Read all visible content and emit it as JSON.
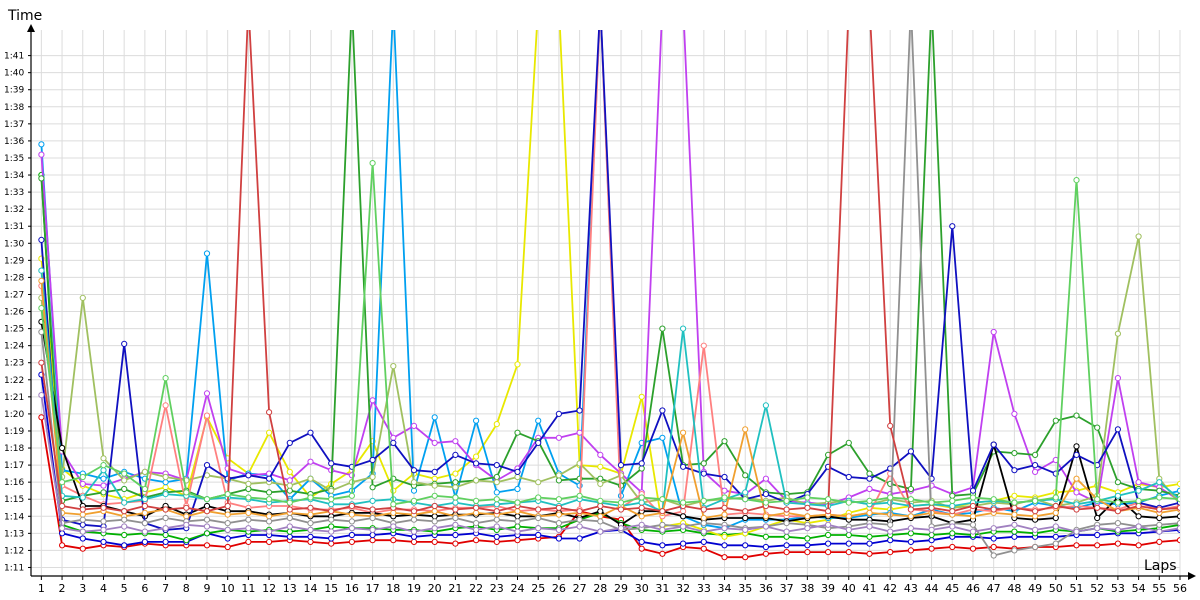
{
  "chart_data": {
    "type": "line",
    "xlabel": "Laps",
    "ylabel": "Time",
    "grid": true,
    "legend": "none",
    "xlim": [
      0.5,
      56
    ],
    "ylim": [
      10.5,
      42.5
    ],
    "x": [
      1,
      2,
      3,
      4,
      5,
      6,
      7,
      8,
      9,
      10,
      11,
      12,
      13,
      14,
      15,
      16,
      17,
      18,
      19,
      20,
      21,
      22,
      23,
      24,
      25,
      26,
      27,
      28,
      29,
      30,
      31,
      32,
      33,
      34,
      35,
      36,
      37,
      38,
      39,
      40,
      41,
      42,
      43,
      44,
      45,
      46,
      47,
      48,
      49,
      50,
      51,
      52,
      53,
      54,
      55,
      56
    ],
    "x_tick_labels": [
      "1",
      "2",
      "3",
      "4",
      "5",
      "6",
      "7",
      "8",
      "9",
      "10",
      "11",
      "12",
      "13",
      "14",
      "15",
      "16",
      "17",
      "18",
      "19",
      "20",
      "21",
      "22",
      "23",
      "24",
      "25",
      "26",
      "27",
      "28",
      "29",
      "30",
      "31",
      "32",
      "33",
      "34",
      "35",
      "36",
      "37",
      "38",
      "39",
      "40",
      "41",
      "42",
      "43",
      "44",
      "45",
      "46",
      "47",
      "48",
      "49",
      "50",
      "51",
      "52",
      "53",
      "54",
      "55",
      "56"
    ],
    "y_ticks": [
      11,
      12,
      13,
      14,
      15,
      16,
      17,
      18,
      19,
      20,
      21,
      22,
      23,
      24,
      25,
      26,
      27,
      28,
      29,
      30,
      31,
      32,
      33,
      34,
      35,
      36,
      37,
      38,
      39,
      40,
      41
    ],
    "y_tick_labels": [
      "1:11",
      "1:12",
      "1:13",
      "1:14",
      "1:15",
      "1:16",
      "1:17",
      "1:18",
      "1:19",
      "1:20",
      "1:21",
      "1:22",
      "1:23",
      "1:24",
      "1:25",
      "1:26",
      "1:27",
      "1:28",
      "1:29",
      "1:30",
      "1:31",
      "1:32",
      "1:33",
      "1:34",
      "1:35",
      "1:36",
      "1:37",
      "1:38",
      "1:39",
      "1:40",
      "1:41"
    ],
    "series": [
      {
        "color": "#e00000",
        "values": [
          19.8,
          12.3,
          12.1,
          12.3,
          12.2,
          12.4,
          12.3,
          12.3,
          12.3,
          12.2,
          12.5,
          12.5,
          12.6,
          12.5,
          12.4,
          12.5,
          12.6,
          12.6,
          12.5,
          12.5,
          12.4,
          12.6,
          12.5,
          12.6,
          12.7,
          12.8,
          14.3,
          14.0,
          13.8,
          12.1,
          11.8,
          12.2,
          12.1,
          11.6,
          11.6,
          11.8,
          11.9,
          11.9,
          11.9,
          11.9,
          11.8,
          11.9,
          12.0,
          12.1,
          12.2,
          12.1,
          12.2,
          12.1,
          12.2,
          12.2,
          12.3,
          12.3,
          12.4,
          12.3,
          12.5,
          12.6
        ]
      },
      {
        "color": "#0000d0",
        "values": [
          22.3,
          13.0,
          12.7,
          12.5,
          12.3,
          12.5,
          12.5,
          12.5,
          13.0,
          12.7,
          12.9,
          12.9,
          12.8,
          12.8,
          12.7,
          12.9,
          12.9,
          13.0,
          12.8,
          12.9,
          12.9,
          13.0,
          12.8,
          12.9,
          12.9,
          12.7,
          12.7,
          13.1,
          13.2,
          12.5,
          12.3,
          12.4,
          12.5,
          12.3,
          12.3,
          12.2,
          12.3,
          12.3,
          12.4,
          12.4,
          12.4,
          12.6,
          12.5,
          12.6,
          12.8,
          12.8,
          12.7,
          12.8,
          12.8,
          12.8,
          12.9,
          12.9,
          13.0,
          13.0,
          13.1,
          13.2
        ]
      },
      {
        "color": "#00b000",
        "values": [
          34.0,
          13.5,
          13.1,
          13.0,
          12.9,
          13.0,
          12.9,
          12.6,
          13.0,
          13.2,
          13.1,
          13.2,
          13.1,
          13.2,
          13.4,
          13.3,
          13.3,
          13.2,
          13.2,
          13.1,
          13.3,
          13.4,
          13.2,
          13.4,
          13.3,
          13.3,
          13.8,
          14.2,
          13.6,
          13.2,
          13.1,
          13.2,
          13.0,
          12.9,
          13.0,
          12.8,
          12.8,
          12.7,
          12.9,
          12.9,
          12.8,
          12.9,
          13.0,
          12.9,
          13.0,
          12.9,
          13.1,
          13.1,
          13.0,
          13.2,
          13.1,
          13.3,
          13.1,
          13.2,
          13.3,
          13.5
        ]
      },
      {
        "color": "#e8e800",
        "values": [
          29.1,
          16.8,
          15.8,
          15.3,
          15.0,
          15.4,
          15.7,
          15.2,
          19.8,
          17.4,
          16.5,
          18.9,
          16.6,
          15.1,
          15.9,
          16.7,
          18.4,
          15.5,
          16.5,
          16.2,
          16.5,
          17.5,
          19.4,
          22.9,
          44.0,
          44.0,
          17.0,
          16.9,
          16.5,
          21.0,
          13.4,
          13.6,
          13.2,
          12.8,
          13.0,
          13.4,
          13.8,
          13.6,
          13.8,
          14.2,
          14.5,
          14.4,
          14.6,
          14.7,
          14.5,
          14.8,
          14.9,
          15.2,
          15.1,
          15.4,
          15.5,
          15.8,
          15.4,
          15.9,
          15.7,
          15.9
        ]
      },
      {
        "color": "#00a0f0",
        "values": [
          35.8,
          16.7,
          16.5,
          16.2,
          16.6,
          16.2,
          16.0,
          16.2,
          29.4,
          16.1,
          16.5,
          16.4,
          15.0,
          16.2,
          15.2,
          15.5,
          16.5,
          44.0,
          15.5,
          19.8,
          15.1,
          19.6,
          15.4,
          15.6,
          19.6,
          16.5,
          15.8,
          44.0,
          15.2,
          18.3,
          18.6,
          14.0,
          13.5,
          13.3,
          13.8,
          13.8,
          13.8,
          14.0,
          13.9,
          13.9,
          14.1,
          14.2,
          14.0,
          14.4,
          14.1,
          14.2,
          14.5,
          14.3,
          14.8,
          14.6,
          14.5,
          14.8,
          14.7,
          14.8,
          15.2,
          15.5
        ]
      },
      {
        "color": "#c040f0",
        "values": [
          35.2,
          17.8,
          15.9,
          15.8,
          16.2,
          16.6,
          16.5,
          16.1,
          21.2,
          16.8,
          16.4,
          16.5,
          16.1,
          17.2,
          16.7,
          16.4,
          20.8,
          18.6,
          19.3,
          18.3,
          18.4,
          17.0,
          16.1,
          16.8,
          18.6,
          18.6,
          18.9,
          17.6,
          16.5,
          15.4,
          44.0,
          44.0,
          16.6,
          15.5,
          15.3,
          16.2,
          14.9,
          14.8,
          14.7,
          15.1,
          15.6,
          15.3,
          15.5,
          15.8,
          15.3,
          15.7,
          24.8,
          20.0,
          16.6,
          17.3,
          15.4,
          14.8,
          22.1,
          16.0,
          15.7,
          14.9
        ]
      },
      {
        "color": "#2ca02c",
        "values": [
          33.8,
          14.9,
          15.2,
          15.4,
          15.6,
          15.1,
          15.4,
          15.5,
          15.0,
          15.3,
          15.6,
          15.4,
          15.5,
          15.3,
          15.6,
          44.0,
          15.7,
          16.2,
          15.8,
          15.9,
          16.0,
          16.1,
          16.3,
          18.9,
          18.4,
          16.1,
          16.2,
          16.2,
          15.8,
          16.8,
          25.0,
          17.0,
          17.1,
          18.4,
          16.4,
          15.4,
          15.3,
          15.4,
          17.6,
          18.3,
          16.5,
          15.9,
          15.6,
          44.0,
          15.2,
          15.3,
          17.8,
          17.7,
          17.6,
          19.6,
          19.9,
          19.2,
          16.0,
          15.6,
          15.5,
          15.2
        ]
      },
      {
        "color": "#a0c060",
        "values": [
          26.8,
          16.3,
          26.8,
          17.4,
          16.1,
          16.6,
          16.3,
          16.1,
          16.4,
          16.2,
          15.9,
          16.0,
          15.8,
          16.2,
          15.5,
          16.0,
          16.3,
          22.8,
          16.0,
          15.8,
          15.7,
          16.1,
          16.0,
          16.3,
          16.0,
          16.4,
          17.1,
          15.9,
          16.4,
          14.8,
          15.0,
          14.6,
          14.9,
          15.0,
          15.1,
          14.9,
          15.1,
          14.7,
          14.8,
          14.9,
          14.7,
          15.0,
          14.8,
          14.9,
          14.5,
          14.6,
          14.8,
          14.7,
          15.0,
          14.6,
          14.8,
          15.2,
          24.7,
          30.4,
          16.2,
          14.7
        ]
      },
      {
        "color": "#ff8080",
        "values": [
          27.5,
          15.8,
          15.2,
          14.7,
          14.8,
          14.9,
          20.5,
          14.6,
          19.9,
          14.8,
          14.5,
          14.6,
          14.6,
          14.4,
          14.4,
          14.5,
          14.2,
          14.4,
          14.4,
          14.3,
          14.5,
          14.5,
          14.6,
          14.3,
          14.4,
          14.3,
          14.4,
          44.0,
          14.5,
          15.3,
          14.0,
          14.3,
          24.0,
          14.1,
          14.2,
          14.1,
          14.0,
          14.0,
          14.1,
          14.0,
          14.2,
          16.5,
          14.4,
          14.3,
          14.1,
          14.4,
          14.3,
          14.5,
          14.4,
          14.5,
          14.6,
          14.5,
          14.4,
          14.8,
          14.4,
          14.6
        ]
      },
      {
        "color": "#000000",
        "values": [
          25.4,
          18.0,
          14.6,
          14.6,
          14.3,
          14.0,
          14.6,
          14.1,
          14.6,
          14.3,
          14.3,
          14.1,
          14.2,
          14.0,
          14.0,
          14.2,
          14.2,
          14.0,
          14.1,
          14.0,
          14.1,
          14.1,
          14.2,
          14.0,
          14.0,
          14.2,
          13.9,
          14.3,
          13.5,
          14.3,
          14.3,
          14.0,
          13.8,
          13.9,
          13.9,
          13.9,
          13.7,
          13.9,
          14.0,
          13.8,
          13.8,
          13.7,
          13.9,
          14.0,
          13.6,
          13.8,
          18.2,
          13.9,
          13.8,
          13.9,
          18.1,
          13.9,
          15.1,
          14.0,
          13.9,
          14.0
        ]
      },
      {
        "color": "#1010c0",
        "values": [
          30.2,
          13.8,
          13.5,
          13.4,
          24.1,
          13.6,
          13.2,
          13.3,
          17.0,
          16.2,
          16.4,
          16.2,
          18.3,
          18.9,
          17.1,
          16.9,
          17.3,
          18.3,
          16.7,
          16.6,
          17.6,
          17.1,
          17.0,
          16.6,
          18.3,
          20.0,
          20.2,
          44.0,
          17.0,
          17.1,
          20.2,
          16.9,
          16.5,
          16.3,
          15.0,
          15.3,
          14.8,
          15.3,
          16.9,
          16.3,
          16.2,
          16.8,
          17.8,
          16.2,
          31.0,
          15.5,
          18.2,
          16.7,
          17.0,
          16.5,
          17.6,
          17.0,
          19.1,
          14.8,
          14.5,
          14.8
        ]
      },
      {
        "color": "#20c0c0",
        "values": [
          28.4,
          15.2,
          15.1,
          16.7,
          14.8,
          15.0,
          15.3,
          15.2,
          15.0,
          15.1,
          15.0,
          14.8,
          14.9,
          15.0,
          14.7,
          14.7,
          14.9,
          15.0,
          14.8,
          14.6,
          14.8,
          14.6,
          14.7,
          14.8,
          14.9,
          14.6,
          15.0,
          14.8,
          14.6,
          14.8,
          14.3,
          25.0,
          14.5,
          15.0,
          15.4,
          20.5,
          14.8,
          14.7,
          14.6,
          14.9,
          14.7,
          14.8,
          14.6,
          14.7,
          14.6,
          14.8,
          14.9,
          14.8,
          14.9,
          15.0,
          14.7,
          14.9,
          15.2,
          15.5,
          16.0,
          15.0
        ]
      },
      {
        "color": "#f0a030",
        "values": [
          27.8,
          14.2,
          14.1,
          14.3,
          14.0,
          14.2,
          14.4,
          14.0,
          14.3,
          14.1,
          14.2,
          14.0,
          14.2,
          14.1,
          14.3,
          14.1,
          14.0,
          14.2,
          14.1,
          14.3,
          14.0,
          14.2,
          14.1,
          14.3,
          14.0,
          14.1,
          14.2,
          14.0,
          14.6,
          14.0,
          14.2,
          18.9,
          13.9,
          14.1,
          19.1,
          14.0,
          14.2,
          14.0,
          14.1,
          14.0,
          14.2,
          14.1,
          14.0,
          14.2,
          14.1,
          14.0,
          14.2,
          14.1,
          14.0,
          14.2,
          16.2,
          15.0,
          14.3,
          14.5,
          14.2,
          14.4
        ]
      },
      {
        "color": "#909090",
        "values": [
          24.8,
          13.6,
          13.8,
          13.7,
          13.8,
          13.6,
          13.9,
          13.7,
          13.8,
          13.6,
          13.8,
          13.7,
          13.9,
          13.6,
          13.8,
          13.7,
          13.9,
          13.6,
          13.8,
          13.7,
          13.9,
          13.6,
          13.8,
          13.7,
          13.9,
          13.6,
          13.8,
          13.7,
          13.2,
          13.3,
          13.5,
          13.4,
          13.6,
          13.5,
          13.3,
          13.4,
          13.6,
          13.5,
          13.3,
          13.4,
          13.6,
          13.5,
          44.0,
          13.4,
          13.6,
          13.5,
          11.7,
          12.0,
          12.2,
          12.4,
          13.2,
          13.5,
          13.6,
          13.4,
          13.5,
          13.6
        ]
      },
      {
        "color": "#d04040",
        "values": [
          23.0,
          14.6,
          14.4,
          14.5,
          14.3,
          14.6,
          14.4,
          14.5,
          14.3,
          14.6,
          44.0,
          20.1,
          14.4,
          14.5,
          14.3,
          14.6,
          14.4,
          14.5,
          14.3,
          14.6,
          14.4,
          14.5,
          14.3,
          14.6,
          14.4,
          14.5,
          14.3,
          14.6,
          14.4,
          14.5,
          14.3,
          14.6,
          14.4,
          14.5,
          14.3,
          14.6,
          14.4,
          14.5,
          14.3,
          44.0,
          44.0,
          19.3,
          14.4,
          14.5,
          14.3,
          14.6,
          14.4,
          14.5,
          14.3,
          14.6,
          14.4,
          14.5,
          14.3,
          14.6,
          14.4,
          14.5
        ]
      },
      {
        "color": "#60d060",
        "values": [
          26.2,
          16.0,
          16.3,
          17.0,
          16.5,
          15.6,
          22.1,
          15.4,
          15.0,
          15.3,
          15.1,
          15.0,
          14.8,
          15.1,
          15.0,
          15.2,
          34.7,
          14.7,
          14.9,
          15.2,
          15.1,
          14.9,
          15.0,
          14.8,
          15.1,
          15.0,
          15.2,
          14.9,
          14.8,
          15.1,
          15.0,
          14.8,
          14.9,
          15.1,
          15.0,
          14.8,
          14.9,
          15.1,
          15.0,
          14.8,
          14.9,
          15.1,
          15.0,
          14.8,
          14.9,
          15.1,
          15.0,
          14.8,
          14.9,
          15.1,
          33.7,
          15.0,
          14.8,
          14.9,
          15.1,
          15.0
        ]
      },
      {
        "color": "#a080c0",
        "values": [
          21.1,
          13.3,
          13.1,
          13.2,
          13.4,
          13.1,
          13.3,
          13.5,
          13.4,
          13.2,
          13.3,
          13.1,
          13.4,
          13.2,
          13.1,
          13.3,
          13.2,
          13.4,
          13.1,
          13.3,
          13.5,
          13.2,
          13.4,
          13.1,
          13.3,
          13.2,
          13.4,
          13.1,
          13.3,
          13.5,
          13.2,
          13.4,
          13.1,
          13.3,
          13.2,
          13.4,
          13.1,
          13.3,
          13.5,
          13.2,
          13.4,
          13.1,
          13.3,
          13.2,
          13.4,
          13.1,
          13.3,
          13.5,
          13.2,
          13.4,
          13.1,
          13.3,
          13.2,
          13.4,
          13.1,
          13.3
        ]
      }
    ]
  }
}
